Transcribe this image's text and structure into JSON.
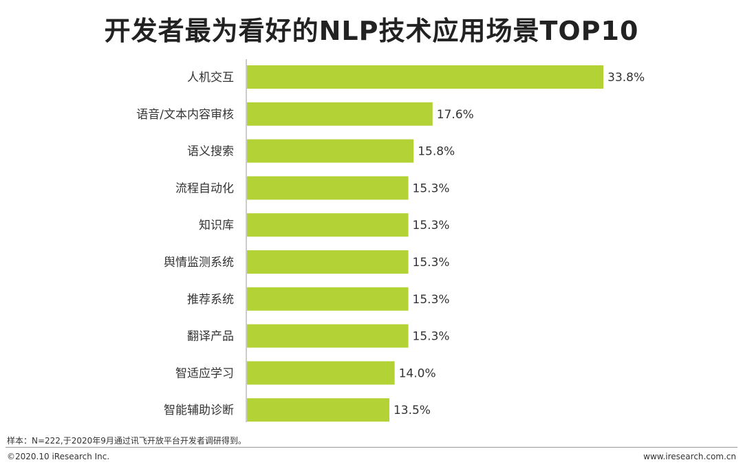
{
  "chart_data": {
    "type": "bar",
    "orientation": "horizontal",
    "title": "开发者最为看好的NLP技术应用场景TOP10",
    "categories": [
      "人机交互",
      "语音/文本内容审核",
      "语义搜索",
      "流程自动化",
      "知识库",
      "舆情监测系统",
      "推荐系统",
      "翻译产品",
      "智适应学习",
      "智能辅助诊断"
    ],
    "values": [
      33.8,
      17.6,
      15.8,
      15.3,
      15.3,
      15.3,
      15.3,
      15.3,
      14.0,
      13.5
    ],
    "value_labels": [
      "33.8%",
      "17.6%",
      "15.8%",
      "15.3%",
      "15.3%",
      "15.3%",
      "15.3%",
      "15.3%",
      "14.0%",
      "13.5%"
    ],
    "unit": "%",
    "grid": false,
    "legend": "none",
    "bar_color": "#b2d235"
  },
  "footer": {
    "note": "样本：N=222,于2020年9月通过讯飞开放平台开发者调研得到。",
    "copyright": "©2020.10 iResearch Inc.",
    "website": "www.iresearch.com.cn"
  }
}
